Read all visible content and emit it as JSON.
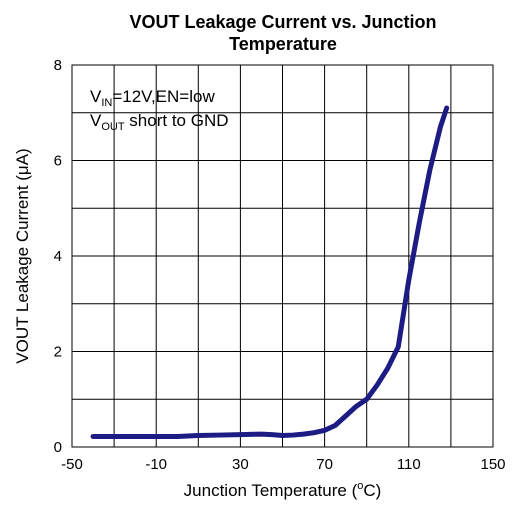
{
  "chart_data": {
    "type": "line",
    "title": [
      "VOUT Leakage Current vs. Junction",
      "Temperature"
    ],
    "x_label": {
      "text": "Junction Temperature (",
      "sup": "o",
      "rest": "C)"
    },
    "y_label": "VOUT Leakage Current (μA)",
    "annotations": [
      {
        "base": "V",
        "sub": "IN",
        "rest": "=12V,EN=low"
      },
      {
        "base": "V",
        "sub": "OUT",
        "rest": " short to GND"
      }
    ],
    "x": [
      -40,
      -20,
      0,
      10,
      20,
      30,
      40,
      45,
      50,
      55,
      60,
      65,
      70,
      75,
      80,
      85,
      90,
      95,
      100,
      105,
      110,
      115,
      120,
      125,
      128
    ],
    "series": [
      {
        "name": "VOUT leakage",
        "color": "#1c1c84",
        "values": [
          0.22,
          0.22,
          0.22,
          0.24,
          0.25,
          0.26,
          0.27,
          0.26,
          0.24,
          0.25,
          0.27,
          0.3,
          0.35,
          0.45,
          0.65,
          0.85,
          1.0,
          1.3,
          1.65,
          2.1,
          3.5,
          4.7,
          5.8,
          6.7,
          7.1
        ]
      }
    ],
    "xlim": [
      -50,
      150
    ],
    "xticks": [
      -50,
      -10,
      30,
      70,
      110,
      150
    ],
    "ylim": [
      0,
      8
    ],
    "yticks": [
      0,
      2,
      4,
      6,
      8
    ],
    "grid": true,
    "minor_grid": true
  }
}
